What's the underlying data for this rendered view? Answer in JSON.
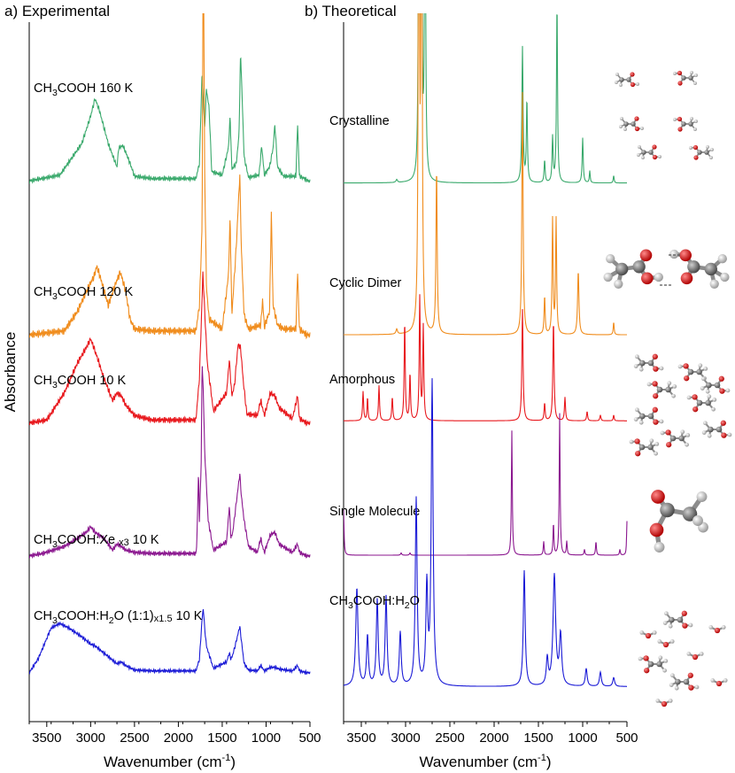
{
  "figure": {
    "ylabel": "Absorbance"
  },
  "chart_data": [
    {
      "type": "line",
      "panel_label": "a) Experimental",
      "xlabel_main": "Wavenumber (cm",
      "xlabel_sup": "-1",
      "xlabel_end": ")",
      "xlim": [
        3700,
        500
      ],
      "x_reversed": true,
      "xticks": [
        3500,
        3000,
        2500,
        2000,
        1500,
        1000,
        500
      ],
      "legend": "none",
      "grid": false,
      "series": [
        {
          "name": "CH₃COOH 160 K",
          "label_parts": [
            {
              "t": "CH",
              "k": "n"
            },
            {
              "t": "3",
              "k": "sub"
            },
            {
              "t": "COOH 160 K",
              "k": "n"
            }
          ],
          "color": "#3aa96c",
          "baseline_frac": 0.227,
          "x": [
            3700,
            3350,
            3100,
            3000,
            2950,
            2900,
            2800,
            2700,
            2680,
            2630,
            2550,
            2500,
            2300,
            1800,
            1760,
            1730,
            1700,
            1680,
            1650,
            1620,
            1500,
            1430,
            1410,
            1390,
            1340,
            1310,
            1290,
            1250,
            1200,
            1080,
            1050,
            1020,
            960,
            920,
            900,
            870,
            800,
            660,
            640,
            620,
            560,
            520,
            500
          ],
          "y": [
            0.0,
            0.05,
            0.32,
            0.55,
            0.7,
            0.6,
            0.32,
            0.12,
            0.28,
            0.3,
            0.15,
            0.04,
            0.02,
            0.02,
            0.15,
            0.93,
            0.45,
            0.78,
            0.62,
            0.08,
            0.05,
            0.28,
            0.55,
            0.1,
            0.15,
            0.38,
            1.1,
            0.2,
            0.03,
            0.05,
            0.3,
            0.05,
            0.12,
            0.28,
            0.48,
            0.12,
            0.04,
            0.04,
            0.48,
            0.04,
            0.02,
            0.0,
            0.0
          ]
        },
        {
          "name": "CH₃COOH 120 K",
          "label_parts": [
            {
              "t": "CH",
              "k": "n"
            },
            {
              "t": "3",
              "k": "sub"
            },
            {
              "t": "COOH 120 K",
              "k": "n"
            }
          ],
          "color": "#f08c1c",
          "baseline_frac": 0.447,
          "x": [
            3700,
            3300,
            3150,
            3050,
            2960,
            2930,
            2880,
            2800,
            2700,
            2660,
            2600,
            2550,
            2500,
            2300,
            1800,
            1760,
            1730,
            1715,
            1700,
            1680,
            1650,
            1500,
            1430,
            1410,
            1390,
            1340,
            1300,
            1280,
            1250,
            1200,
            1060,
            1040,
            1020,
            960,
            940,
            920,
            870,
            800,
            660,
            640,
            620,
            540,
            500
          ],
          "y": [
            0.0,
            0.02,
            0.12,
            0.22,
            0.3,
            0.35,
            0.28,
            0.15,
            0.28,
            0.32,
            0.22,
            0.08,
            0.03,
            0.02,
            0.02,
            0.15,
            0.55,
            2.1,
            0.85,
            0.25,
            0.08,
            0.03,
            0.3,
            0.6,
            0.1,
            0.45,
            0.82,
            0.42,
            0.1,
            0.03,
            0.05,
            0.18,
            0.04,
            0.12,
            0.62,
            0.15,
            0.05,
            0.03,
            0.03,
            0.32,
            0.03,
            0.0,
            0.0
          ]
        },
        {
          "name": "CH₃COOH 10 K",
          "label_parts": [
            {
              "t": "CH",
              "k": "n"
            },
            {
              "t": "3",
              "k": "sub"
            },
            {
              "t": "COOH 10 K",
              "k": "n"
            }
          ],
          "color": "#e8171c",
          "baseline_frac": 0.573,
          "x": [
            3700,
            3500,
            3300,
            3150,
            3050,
            3000,
            2950,
            2850,
            2750,
            2700,
            2650,
            2600,
            2500,
            2300,
            1800,
            1760,
            1720,
            1700,
            1670,
            1600,
            1450,
            1420,
            1390,
            1360,
            1320,
            1290,
            1260,
            1220,
            1100,
            1060,
            1040,
            1020,
            950,
            900,
            850,
            700,
            640,
            620,
            540,
            500
          ],
          "y": [
            0.0,
            0.02,
            0.2,
            0.4,
            0.5,
            0.56,
            0.48,
            0.3,
            0.15,
            0.2,
            0.18,
            0.12,
            0.05,
            0.02,
            0.02,
            0.3,
            1.0,
            0.75,
            0.4,
            0.08,
            0.2,
            0.42,
            0.18,
            0.25,
            0.52,
            0.5,
            0.28,
            0.06,
            0.05,
            0.15,
            0.1,
            0.05,
            0.2,
            0.18,
            0.1,
            0.03,
            0.18,
            0.03,
            0.0,
            0.0
          ]
        },
        {
          "name": "CH₃COOH:Xe x3 10 K",
          "label_parts": [
            {
              "t": "CH",
              "k": "n"
            },
            {
              "t": "3",
              "k": "sub"
            },
            {
              "t": "COOH:Xe ",
              "k": "n"
            },
            {
              "t": "x3",
              "k": "small"
            },
            {
              "t": " 10 K",
              "k": "n"
            }
          ],
          "color": "#8b178f",
          "baseline_frac": 0.763,
          "x": [
            3700,
            3550,
            3300,
            3150,
            3050,
            3000,
            2950,
            2850,
            2750,
            2700,
            2650,
            2600,
            2500,
            2300,
            1800,
            1790,
            1770,
            1760,
            1740,
            1730,
            1715,
            1700,
            1680,
            1660,
            1600,
            1450,
            1420,
            1400,
            1380,
            1340,
            1300,
            1280,
            1250,
            1200,
            1100,
            1060,
            1040,
            1020,
            950,
            900,
            850,
            700,
            640,
            620,
            540,
            500
          ],
          "y": [
            0.0,
            0.02,
            0.08,
            0.15,
            0.2,
            0.25,
            0.2,
            0.15,
            0.05,
            0.1,
            0.08,
            0.05,
            0.03,
            0.02,
            0.02,
            0.1,
            0.72,
            0.3,
            0.8,
            1.65,
            1.4,
            0.9,
            0.6,
            0.3,
            0.05,
            0.12,
            0.42,
            0.15,
            0.2,
            0.45,
            0.7,
            0.5,
            0.3,
            0.08,
            0.03,
            0.15,
            0.08,
            0.03,
            0.18,
            0.2,
            0.1,
            0.03,
            0.1,
            0.03,
            0.0,
            0.0
          ]
        },
        {
          "name": "CH₃COOH:H₂O (1:1)x1.5 10 K",
          "label_parts": [
            {
              "t": "CH",
              "k": "n"
            },
            {
              "t": "3",
              "k": "sub"
            },
            {
              "t": "COOH:H",
              "k": "n"
            },
            {
              "t": "2",
              "k": "sub"
            },
            {
              "t": "O (1:1)",
              "k": "n"
            },
            {
              "t": "x1.5",
              "k": "small"
            },
            {
              "t": "  10 K",
              "k": "n"
            }
          ],
          "color": "#1a1ad6",
          "baseline_frac": 0.93,
          "x": [
            3700,
            3600,
            3450,
            3350,
            3250,
            3100,
            3000,
            2950,
            2800,
            2700,
            2650,
            2600,
            2500,
            2300,
            1800,
            1760,
            1730,
            1715,
            1700,
            1680,
            1650,
            1600,
            1450,
            1420,
            1400,
            1380,
            1340,
            1300,
            1280,
            1250,
            1200,
            1100,
            1060,
            1040,
            1020,
            950,
            900,
            850,
            700,
            640,
            620,
            540,
            500
          ],
          "y": [
            0.0,
            0.15,
            0.5,
            0.55,
            0.5,
            0.4,
            0.32,
            0.3,
            0.18,
            0.1,
            0.12,
            0.08,
            0.03,
            0.02,
            0.02,
            0.15,
            0.6,
            0.72,
            0.5,
            0.3,
            0.2,
            0.05,
            0.12,
            0.22,
            0.15,
            0.2,
            0.35,
            0.52,
            0.35,
            0.1,
            0.03,
            0.02,
            0.08,
            0.05,
            0.02,
            0.06,
            0.06,
            0.04,
            0.02,
            0.08,
            0.02,
            0.0,
            0.0
          ]
        }
      ]
    },
    {
      "type": "line",
      "panel_label": "b) Theoretical",
      "xlabel_main": "Wavenumber (cm",
      "xlabel_sup": "-1",
      "xlabel_end": ")",
      "xlim": [
        3700,
        500
      ],
      "x_reversed": true,
      "xticks": [
        3500,
        3000,
        2500,
        2000,
        1500,
        1000,
        500
      ],
      "legend": "none",
      "grid": false,
      "series": [
        {
          "name": "Crystalline",
          "label_parts": [
            {
              "t": "Crystalline",
              "k": "n"
            }
          ],
          "color": "#3aa96c",
          "baseline_frac": 0.23,
          "peaks": [
            [
              3100,
              0.02,
              20
            ],
            [
              2850,
              2.5,
              14
            ],
            [
              2820,
              2.5,
              14
            ],
            [
              2780,
              2.5,
              14
            ],
            [
              1680,
              0.9,
              16
            ],
            [
              1630,
              0.55,
              14
            ],
            [
              1430,
              0.15,
              14
            ],
            [
              1340,
              0.3,
              14
            ],
            [
              1290,
              1.2,
              14
            ],
            [
              1000,
              0.3,
              14
            ],
            [
              920,
              0.08,
              12
            ],
            [
              650,
              0.05,
              12
            ]
          ]
        },
        {
          "name": "Cyclic Dimer",
          "label_parts": [
            {
              "t": "Cyclic Dimer",
              "k": "n"
            }
          ],
          "color": "#f08c1c",
          "baseline_frac": 0.447,
          "peaks": [
            [
              3100,
              0.02,
              20
            ],
            [
              2850,
              2.5,
              14
            ],
            [
              2820,
              2.5,
              14
            ],
            [
              2650,
              0.65,
              16
            ],
            [
              1680,
              0.95,
              16
            ],
            [
              1430,
              0.15,
              14
            ],
            [
              1340,
              0.45,
              14
            ],
            [
              1300,
              0.45,
              14
            ],
            [
              1050,
              0.25,
              18
            ],
            [
              650,
              0.05,
              12
            ]
          ]
        },
        {
          "name": "Amorphous",
          "label_parts": [
            {
              "t": "Amorphous",
              "k": "n"
            }
          ],
          "color": "#e8171c",
          "baseline_frac": 0.57,
          "peaks": [
            [
              3480,
              0.25,
              14
            ],
            [
              3430,
              0.2,
              12
            ],
            [
              3300,
              0.3,
              14
            ],
            [
              3150,
              0.2,
              14
            ],
            [
              3010,
              0.85,
              14
            ],
            [
              2950,
              0.4,
              14
            ],
            [
              2840,
              1.05,
              14
            ],
            [
              2800,
              0.8,
              14
            ],
            [
              1680,
              0.95,
              16
            ],
            [
              1430,
              0.15,
              14
            ],
            [
              1330,
              0.85,
              16
            ],
            [
              1200,
              0.2,
              14
            ],
            [
              950,
              0.08,
              14
            ],
            [
              800,
              0.05,
              14
            ],
            [
              650,
              0.05,
              12
            ]
          ]
        },
        {
          "name": "Single Molecule",
          "label_parts": [
            {
              "t": "Single Molecule",
              "k": "n"
            }
          ],
          "color": "#8b178f",
          "baseline_frac": 0.762,
          "peaks": [
            [
              3700,
              0.4,
              12
            ],
            [
              3050,
              0.02,
              14
            ],
            [
              2950,
              0.02,
              14
            ],
            [
              1800,
              1.1,
              12
            ],
            [
              1440,
              0.12,
              12
            ],
            [
              1330,
              0.28,
              12
            ],
            [
              1260,
              1.25,
              12
            ],
            [
              1180,
              0.12,
              12
            ],
            [
              980,
              0.05,
              12
            ],
            [
              850,
              0.12,
              12
            ],
            [
              580,
              0.05,
              12
            ],
            [
              500,
              0.3,
              10
            ]
          ]
        },
        {
          "name": "CH₃COOH:H₂O",
          "label_parts": [
            {
              "t": "CH",
              "k": "n"
            },
            {
              "t": "3",
              "k": "sub"
            },
            {
              "t": "COOH:H",
              "k": "n"
            },
            {
              "t": "2",
              "k": "sub"
            },
            {
              "t": "O",
              "k": "n"
            }
          ],
          "color": "#1a1ad6",
          "baseline_frac": 0.95,
          "peaks": [
            [
              3550,
              0.55,
              30
            ],
            [
              3430,
              0.28,
              25
            ],
            [
              3320,
              0.48,
              25
            ],
            [
              3220,
              0.5,
              25
            ],
            [
              3060,
              0.3,
              25
            ],
            [
              2880,
              1.05,
              25
            ],
            [
              2760,
              0.55,
              25
            ],
            [
              2700,
              1.7,
              25
            ],
            [
              1660,
              0.65,
              25
            ],
            [
              1400,
              0.15,
              25
            ],
            [
              1320,
              0.62,
              35
            ],
            [
              1250,
              0.28,
              30
            ],
            [
              960,
              0.1,
              25
            ],
            [
              800,
              0.08,
              25
            ],
            [
              650,
              0.05,
              25
            ]
          ]
        }
      ]
    }
  ],
  "structures": [
    {
      "name": "crystalline-structure-image",
      "kind": "crystalline"
    },
    {
      "name": "cyclic-dimer-structure-image",
      "kind": "dimer"
    },
    {
      "name": "amorphous-structure-image",
      "kind": "amorphous"
    },
    {
      "name": "single-molecule-structure-image",
      "kind": "single"
    },
    {
      "name": "water-complex-structure-image",
      "kind": "water"
    }
  ]
}
